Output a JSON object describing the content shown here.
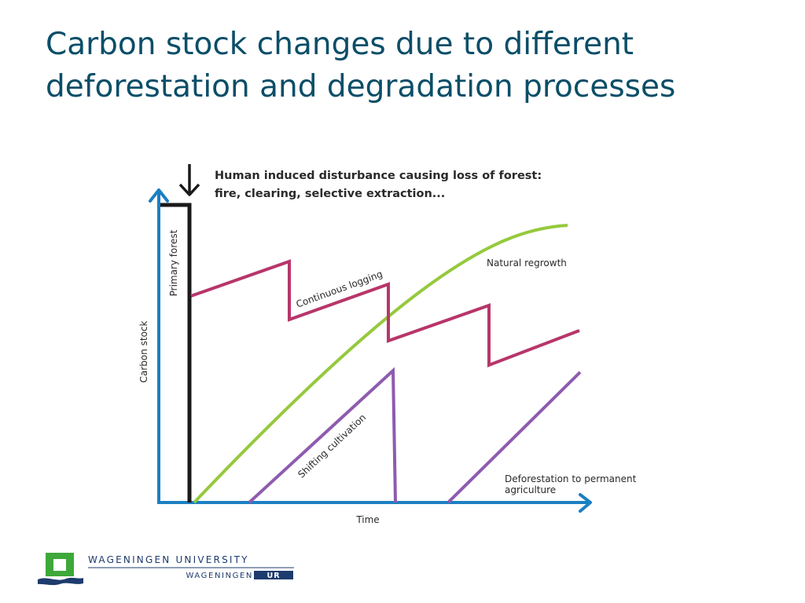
{
  "slide": {
    "title_line1": "Carbon stock changes due to different",
    "title_line2": "deforestation and degradation processes"
  },
  "diagram": {
    "disturbance_line1": "Human induced disturbance causing loss of forest:",
    "disturbance_line2": "fire, clearing, selective extraction...",
    "y_axis_label": "Carbon stock",
    "x_axis_label": "Time",
    "primary_forest_label": "Primary forest",
    "continuous_logging_label": "Continuous logging",
    "natural_regrowth_label": "Natural regrowth",
    "shifting_cultivation_label": "Shifting cultivation",
    "deforestation_line1": "Deforestation to permanent",
    "deforestation_line2": "agriculture"
  },
  "logo": {
    "university": "WAGENINGEN UNIVERSITY",
    "sub_prefix": "WAGENINGEN",
    "sub_badge": "UR"
  },
  "colors": {
    "title": "#0b4e68",
    "axis": "#1b7fc3",
    "primary_forest": "#1a1a1a",
    "continuous_logging": "#b7366a",
    "natural_regrowth": "#95c93d",
    "shifting_cultivation": "#8e5bb0",
    "logo_green": "#3ea83a",
    "logo_navy": "#1d3b6d"
  }
}
